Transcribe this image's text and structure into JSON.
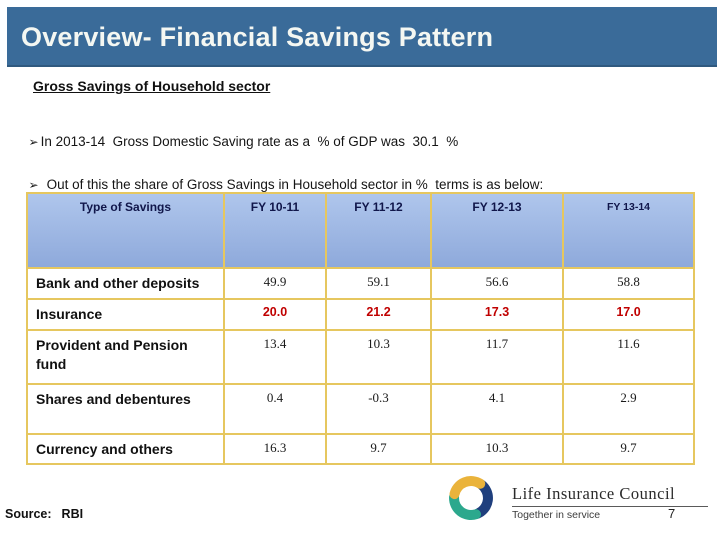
{
  "title": "Overview- Financial Savings Pattern",
  "subtitle": "Gross Savings of Household sector",
  "bullets": [
    {
      "marker": "➢",
      "text": "In 2013-14  Gross Domestic Saving rate as a  % of GDP was  30.1  %"
    },
    {
      "marker": "➢",
      "text": "Out of this the share of Gross Savings in Household sector in %  terms is as below:"
    }
  ],
  "table": {
    "headers": [
      "Type of Savings",
      "FY 10-11",
      "FY 11-12",
      "FY 12-13",
      "FY 13-14"
    ],
    "rows": [
      {
        "label": "Bank and other deposits",
        "values": [
          "49.9",
          "59.1",
          "56.6",
          "58.8"
        ],
        "highlight": false
      },
      {
        "label": "Insurance",
        "values": [
          "20.0",
          "21.2",
          "17.3",
          "17.0"
        ],
        "highlight": true
      },
      {
        "label": "Provident and Pension fund",
        "values": [
          "13.4",
          "10.3",
          "11.7",
          "11.6"
        ],
        "highlight": false
      },
      {
        "label": "Shares and debentures",
        "values": [
          "0.4",
          "-0.3",
          "4.1",
          "2.9"
        ],
        "highlight": false
      },
      {
        "label": "Currency and others",
        "values": [
          "16.3",
          "9.7",
          "10.3",
          "9.7"
        ],
        "highlight": false
      }
    ]
  },
  "footer": {
    "source_label": "Source:",
    "source_value": "RBI",
    "page_number": "7"
  },
  "logo": {
    "name": "Life Insurance Council",
    "tagline": "Together in service",
    "icon": "tri-swirl-circle-icon"
  },
  "colors": {
    "title_bar_blue": "#3A6B99",
    "header_cell_blue_top": "#AFC6EC",
    "header_cell_blue_bottom": "#8EA9DB",
    "table_border_gold": "#E6C75F",
    "highlight_value_red": "#C00000",
    "logo_gold": "#EAB33B",
    "logo_navy": "#1F3F7D",
    "logo_teal": "#2CA88D"
  }
}
